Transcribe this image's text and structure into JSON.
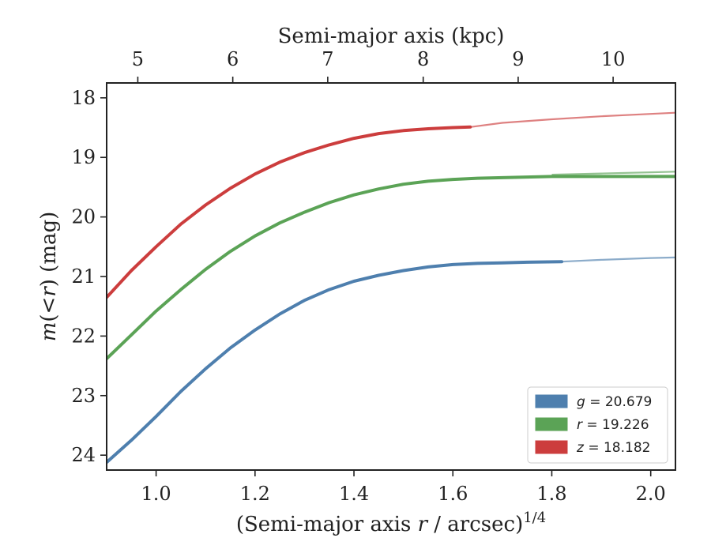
{
  "chart_data": {
    "type": "line",
    "xlabel_prefix": "(Semi-major axis ",
    "xlabel_var": "r",
    "xlabel_suffix": " / arcsec)",
    "xlabel_exp": "1/4",
    "ylabel_m": "m",
    "ylabel_mid": "(<",
    "ylabel_r": "r",
    "ylabel_suffix": ") (mag)",
    "top_xlabel": "Semi-major axis (kpc)",
    "xlim": [
      0.9,
      2.05
    ],
    "ylim": [
      24.25,
      17.75
    ],
    "y_inverted": true,
    "xticks": [
      "1.0",
      "1.2",
      "1.4",
      "1.6",
      "1.8",
      "2.0"
    ],
    "xtick_values": [
      1.0,
      1.2,
      1.4,
      1.6,
      1.8,
      2.0
    ],
    "yticks": [
      "18",
      "19",
      "20",
      "21",
      "22",
      "23",
      "24"
    ],
    "ytick_values": [
      18,
      19,
      20,
      21,
      22,
      23,
      24
    ],
    "top_xticks": [
      "5",
      "6",
      "7",
      "8",
      "9",
      "10"
    ],
    "top_xtick_positions": [
      0.963,
      1.155,
      1.347,
      1.54,
      1.732,
      1.924
    ],
    "grid": false,
    "legend_position": "bottom-right",
    "series": [
      {
        "name": "g = 20.679",
        "band": "g",
        "value": "20.679",
        "color": "#4e7fae",
        "x": [
          0.9,
          0.95,
          1.0,
          1.05,
          1.1,
          1.15,
          1.2,
          1.25,
          1.3,
          1.35,
          1.4,
          1.45,
          1.5,
          1.55,
          1.6,
          1.65,
          1.7,
          1.75,
          1.82
        ],
        "y": [
          24.12,
          23.75,
          23.35,
          22.93,
          22.55,
          22.2,
          21.9,
          21.63,
          21.4,
          21.22,
          21.08,
          20.98,
          20.9,
          20.84,
          20.8,
          20.78,
          20.77,
          20.76,
          20.75
        ],
        "model_x": [
          1.82,
          1.9,
          2.0,
          2.05
        ],
        "model_y": [
          20.75,
          20.72,
          20.69,
          20.68
        ]
      },
      {
        "name": "r = 19.226",
        "band": "r",
        "value": "19.226",
        "color": "#5ba356",
        "x": [
          0.9,
          0.95,
          1.0,
          1.05,
          1.1,
          1.15,
          1.2,
          1.25,
          1.3,
          1.35,
          1.4,
          1.45,
          1.5,
          1.55,
          1.6,
          1.65,
          1.7,
          1.75,
          1.8,
          1.9,
          2.05
        ],
        "y": [
          22.38,
          21.98,
          21.58,
          21.22,
          20.88,
          20.58,
          20.32,
          20.1,
          19.92,
          19.76,
          19.63,
          19.53,
          19.45,
          19.4,
          19.37,
          19.35,
          19.34,
          19.33,
          19.32,
          19.32,
          19.32
        ],
        "model_x": [
          1.8,
          1.9,
          2.0,
          2.05
        ],
        "model_y": [
          19.29,
          19.27,
          19.25,
          19.24
        ]
      },
      {
        "name": "z = 18.182",
        "band": "z",
        "value": "18.182",
        "color": "#cc3d3d",
        "x": [
          0.9,
          0.95,
          1.0,
          1.05,
          1.1,
          1.15,
          1.2,
          1.25,
          1.3,
          1.35,
          1.4,
          1.45,
          1.5,
          1.55,
          1.6,
          1.635
        ],
        "y": [
          21.35,
          20.9,
          20.5,
          20.12,
          19.8,
          19.52,
          19.28,
          19.08,
          18.92,
          18.79,
          18.68,
          18.6,
          18.55,
          18.52,
          18.5,
          18.49
        ],
        "model_x": [
          1.635,
          1.7,
          1.8,
          1.9,
          2.0,
          2.05
        ],
        "model_y": [
          18.49,
          18.42,
          18.36,
          18.31,
          18.27,
          18.25
        ]
      }
    ]
  }
}
